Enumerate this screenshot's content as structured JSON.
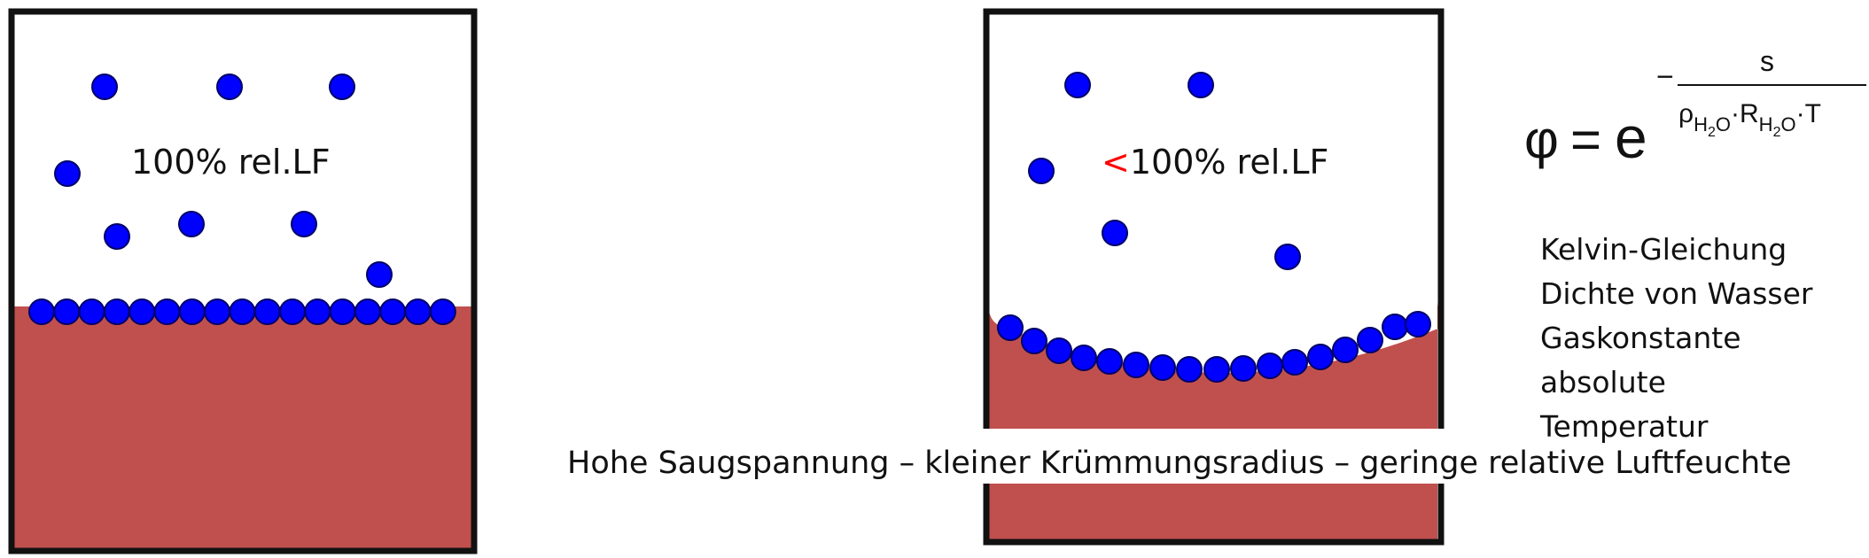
{
  "left_container": {
    "label": "100% rel.LF"
  },
  "right_container": {
    "label_prefix": "<",
    "label": "100% rel.LF"
  },
  "formula": {
    "lhs": "φ",
    "equals": "=",
    "base": "e",
    "minus": "−",
    "numerator": "s",
    "rho": "ρ",
    "r": "R",
    "subscript_h": "H",
    "subscript_2": "2",
    "subscript_o": "O",
    "dot": "·",
    "t": "T"
  },
  "legend": {
    "lines": [
      "Kelvin-Gleichung",
      "Dichte von Wasser",
      "Gaskonstante",
      "absolute",
      "Temperatur"
    ]
  },
  "caption": "Hohe Saugspannung – kleiner Krümmungsradius – geringe relative Luftfeuchte",
  "colors": {
    "water": "#c0504d",
    "molecule": "#0000ff",
    "molecule_outline": "#000066",
    "border": "#111111",
    "accent_red": "#ff0000"
  }
}
